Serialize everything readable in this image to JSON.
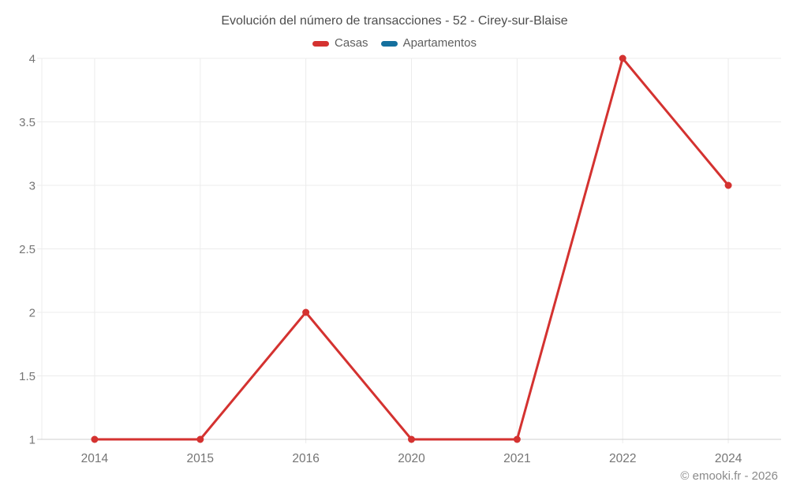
{
  "title": "Evolución del número de transacciones - 52 - Cirey-sur-Blaise",
  "footer": "© emooki.fr - 2026",
  "colors": {
    "casas": "#d43230",
    "apartamentos": "#15709e",
    "grid": "#ececec",
    "axis": "#cfcfcf",
    "tick_text": "#757575",
    "title_text": "#4d4d4d",
    "legend_text": "#5e5e5e",
    "footer_text": "#8a8a8a",
    "background": "#ffffff"
  },
  "chart_data": {
    "type": "line",
    "title": "Evolución del número de transacciones - 52 - Cirey-sur-Blaise",
    "categories": [
      "2014",
      "2015",
      "2016",
      "2020",
      "2021",
      "2022",
      "2024"
    ],
    "series": [
      {
        "name": "Casas",
        "color": "#d43230",
        "values": [
          1,
          1,
          2,
          1,
          1,
          4,
          3
        ]
      },
      {
        "name": "Apartamentos",
        "color": "#15709e",
        "values": [
          null,
          null,
          null,
          null,
          null,
          null,
          null
        ]
      }
    ],
    "xlabel": "",
    "ylabel": "",
    "ylim": [
      1,
      4
    ],
    "yticks": [
      1,
      1.5,
      2,
      2.5,
      3,
      3.5,
      4
    ],
    "grid": true,
    "legend_position": "top",
    "marker_radius": 4.5,
    "line_width": 3
  }
}
